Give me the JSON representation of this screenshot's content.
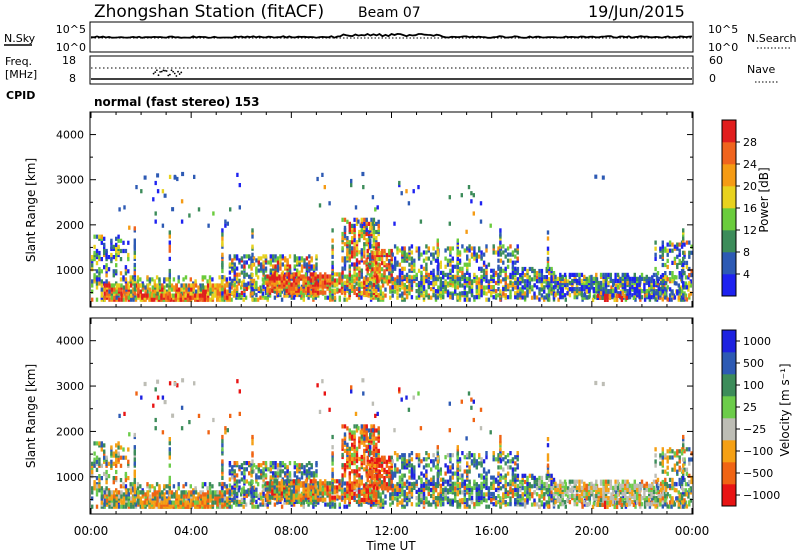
{
  "header": {
    "station": "Zhongshan Station (fitACF)",
    "beam": "Beam 07",
    "date": "19/Jun/2015"
  },
  "strips": {
    "nsky_label": "N.Sky",
    "nsky_ticks": [
      "10^5",
      "10^0"
    ],
    "nsearch_label": "N.Search",
    "nsearch_ticks": [
      "10^5",
      "10^0"
    ],
    "freq_label_1": "Freq.",
    "freq_label_2": "[MHz]",
    "freq_ticks": [
      "18",
      "8"
    ],
    "nave_label": "Nave",
    "nave_ticks": [
      "60",
      "0"
    ],
    "cpid_label": "CPID",
    "cpid_value": "normal (fast stereo) 153"
  },
  "colors": {
    "power_scale": [
      "#1e22f0",
      "#2d5ab4",
      "#3c8c5a",
      "#6acc3c",
      "#e8d21e",
      "#f59b14",
      "#f0641e",
      "#e11e1e"
    ],
    "velocity_scale": [
      "#e81414",
      "#f06414",
      "#f5a014",
      "#bdbdb5",
      "#6ccc4a",
      "#3c8c5a",
      "#2d5ab4",
      "#1e22e0"
    ]
  },
  "chart_data": [
    {
      "type": "heatmap",
      "ylabel": "Slant Range [km]",
      "xlabel": "Time UT",
      "x_ticks": [
        "00:00",
        "04:00",
        "08:00",
        "12:00",
        "16:00",
        "20:00",
        "00:00"
      ],
      "y_ticks": [
        1000,
        2000,
        3000,
        4000
      ],
      "ylim": [
        180,
        4500
      ],
      "xlim_hours": [
        0,
        24
      ],
      "colorbar_label": "Power [dB]",
      "colorbar_ticks": [
        "4",
        "8",
        "12",
        "16",
        "20",
        "24",
        "28"
      ],
      "colorbar_range": [
        0,
        32
      ]
    },
    {
      "type": "heatmap",
      "ylabel": "Slant Range [km]",
      "xlabel": "Time UT",
      "x_ticks": [
        "00:00",
        "04:00",
        "08:00",
        "12:00",
        "16:00",
        "20:00",
        "00:00"
      ],
      "y_ticks": [
        1000,
        2000,
        3000,
        4000
      ],
      "ylim": [
        180,
        4500
      ],
      "xlim_hours": [
        0,
        24
      ],
      "colorbar_label": "Velocity [m s⁻¹]",
      "colorbar_ticks": [
        "1000",
        "500",
        "100",
        "25",
        "−25",
        "−100",
        "−500",
        "−1000"
      ]
    }
  ]
}
